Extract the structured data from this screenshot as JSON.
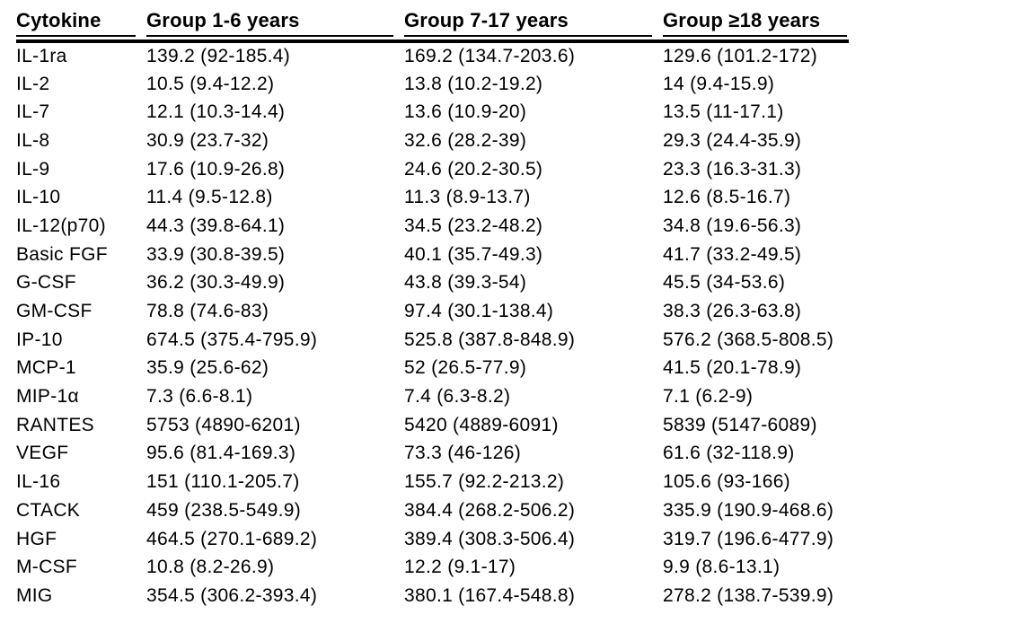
{
  "colors": {
    "background": "#ffffff",
    "text": "#000000",
    "header_rule": "#000000"
  },
  "table": {
    "columns": [
      {
        "label": "Cytokine"
      },
      {
        "label": "Group 1-6 years"
      },
      {
        "label": "Group 7-17 years"
      },
      {
        "label": "Group ≥18 years"
      }
    ],
    "value_format": "median (interquartile range)",
    "rows": [
      {
        "cells": [
          "IL-1ra",
          "139.2 (92-185.4)",
          "169.2 (134.7-203.6)",
          "129.6 (101.2-172)"
        ]
      },
      {
        "cells": [
          "IL-2",
          "10.5 (9.4-12.2)",
          "13.8 (10.2-19.2)",
          "14 (9.4-15.9)"
        ]
      },
      {
        "cells": [
          "IL-7",
          "12.1 (10.3-14.4)",
          "13.6 (10.9-20)",
          "13.5 (11-17.1)"
        ]
      },
      {
        "cells": [
          "IL-8",
          "30.9 (23.7-32)",
          "32.6 (28.2-39)",
          "29.3 (24.4-35.9)"
        ]
      },
      {
        "cells": [
          "IL-9",
          "17.6 (10.9-26.8)",
          "24.6 (20.2-30.5)",
          "23.3 (16.3-31.3)"
        ]
      },
      {
        "cells": [
          "IL-10",
          "11.4 (9.5-12.8)",
          "11.3 (8.9-13.7)",
          "12.6 (8.5-16.7)"
        ]
      },
      {
        "cells": [
          "IL-12(p70)",
          "44.3 (39.8-64.1)",
          "34.5 (23.2-48.2)",
          "34.8 (19.6-56.3)"
        ]
      },
      {
        "cells": [
          "Basic FGF",
          "33.9 (30.8-39.5)",
          "40.1 (35.7-49.3)",
          "41.7 (33.2-49.5)"
        ]
      },
      {
        "cells": [
          "G-CSF",
          "36.2 (30.3-49.9)",
          "43.8 (39.3-54)",
          "45.5 (34-53.6)"
        ]
      },
      {
        "cells": [
          "GM-CSF",
          "78.8 (74.6-83)",
          "97.4 (30.1-138.4)",
          "38.3 (26.3-63.8)"
        ]
      },
      {
        "cells": [
          "IP-10",
          "674.5 (375.4-795.9)",
          "525.8 (387.8-848.9)",
          "576.2 (368.5-808.5)"
        ]
      },
      {
        "cells": [
          "MCP-1",
          "35.9 (25.6-62)",
          "52 (26.5-77.9)",
          "41.5 (20.1-78.9)"
        ]
      },
      {
        "cells": [
          "MIP-1α",
          "7.3 (6.6-8.1)",
          "7.4 (6.3-8.2)",
          "7.1 (6.2-9)"
        ]
      },
      {
        "cells": [
          "RANTES",
          "5753 (4890-6201)",
          "5420 (4889-6091)",
          "5839 (5147-6089)"
        ]
      },
      {
        "cells": [
          "VEGF",
          "95.6 (81.4-169.3)",
          "73.3 (46-126)",
          "61.6 (32-118.9)"
        ]
      },
      {
        "cells": [
          "IL-16",
          "151 (110.1-205.7)",
          "155.7 (92.2-213.2)",
          "105.6 (93-166)"
        ]
      },
      {
        "cells": [
          "CTACK",
          "459 (238.5-549.9)",
          "384.4 (268.2-506.2)",
          "335.9 (190.9-468.6)"
        ]
      },
      {
        "cells": [
          "HGF",
          "464.5 (270.1-689.2)",
          "389.4 (308.3-506.4)",
          "319.7 (196.6-477.9)"
        ]
      },
      {
        "cells": [
          "M-CSF",
          "10.8 (8.2-26.9)",
          "12.2 (9.1-17)",
          "9.9 (8.6-13.1)"
        ]
      },
      {
        "cells": [
          "MIG",
          "354.5 (306.2-393.4)",
          "380.1 (167.4-548.8)",
          "278.2 (138.7-539.9)"
        ]
      }
    ]
  }
}
